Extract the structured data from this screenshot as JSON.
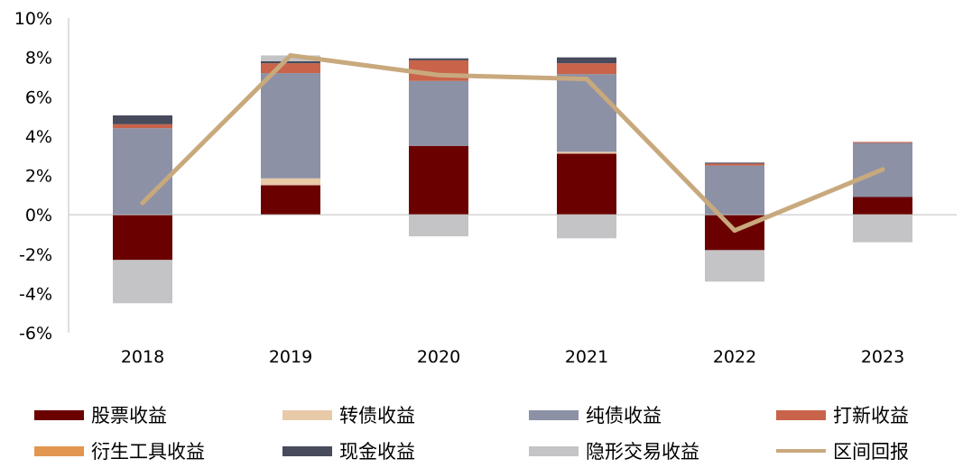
{
  "chart_data": {
    "type": "bar",
    "stacked": true,
    "categories": [
      "2018",
      "2019",
      "2020",
      "2021",
      "2022",
      "2023"
    ],
    "ylim": [
      -6,
      10
    ],
    "yticks": [
      "-6%",
      "-4%",
      "-2%",
      "0%",
      "2%",
      "4%",
      "6%",
      "8%",
      "10%"
    ],
    "series": [
      {
        "name": "股票收益",
        "color": "#6b0000",
        "values": [
          -2.3,
          1.5,
          3.5,
          3.1,
          -1.8,
          0.9
        ]
      },
      {
        "name": "转债收益",
        "color": "#e8c9a8",
        "values": [
          0.0,
          0.35,
          0.0,
          0.1,
          0.0,
          0.0
        ]
      },
      {
        "name": "纯债收益",
        "color": "#8c91a6",
        "values": [
          4.4,
          5.35,
          3.3,
          3.95,
          2.5,
          2.75
        ]
      },
      {
        "name": "打新收益",
        "color": "#c9634a",
        "values": [
          0.2,
          0.5,
          1.05,
          0.55,
          0.1,
          0.05
        ]
      },
      {
        "name": "衍生工具收益",
        "color": "#e39650",
        "values": [
          0.0,
          0.0,
          0.0,
          0.0,
          0.0,
          0.0
        ]
      },
      {
        "name": "现金收益",
        "color": "#474b5c",
        "values": [
          0.45,
          0.1,
          0.1,
          0.3,
          0.05,
          0.0
        ]
      },
      {
        "name": "隐形交易收益",
        "color": "#c4c4c6",
        "values": [
          -2.2,
          0.3,
          -1.1,
          -1.2,
          -1.6,
          -1.4
        ]
      }
    ],
    "line": {
      "name": "区间回报",
      "color": "#c8a97d",
      "values": [
        0.6,
        8.1,
        7.1,
        6.9,
        -0.8,
        2.3
      ]
    },
    "grid": false,
    "legend_position": "bottom"
  }
}
